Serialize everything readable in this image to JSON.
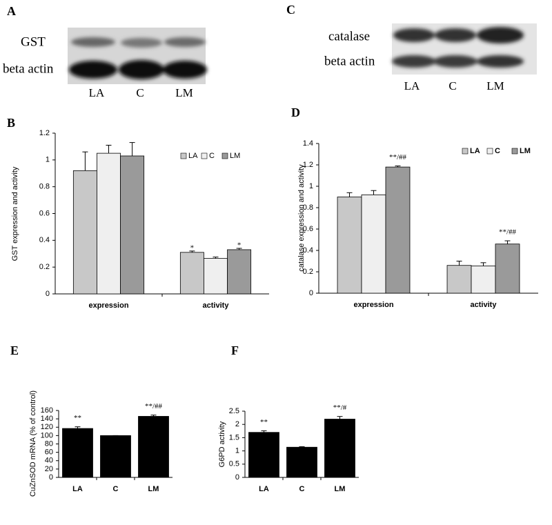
{
  "blots": [
    {
      "panel": "A",
      "rows": [
        "GST",
        "beta actin"
      ],
      "lanes": [
        "LA",
        "C",
        "LM"
      ]
    },
    {
      "panel": "C",
      "rows": [
        "catalase",
        "beta actin"
      ],
      "lanes": [
        "LA",
        "C",
        "LM"
      ]
    }
  ],
  "chart_data": [
    {
      "type": "bar",
      "panel": "B",
      "ylabel": "GST expression and activity",
      "categories": [
        "expression",
        "activity"
      ],
      "series": [
        {
          "name": "LA",
          "color": "#c8c8c8",
          "values": [
            0.92,
            0.31
          ],
          "errors": [
            0.14,
            0.01
          ]
        },
        {
          "name": "C",
          "color": "#efefef",
          "values": [
            1.05,
            0.265
          ],
          "errors": [
            0.06,
            0.01
          ]
        },
        {
          "name": "LM",
          "color": "#9a9a9a",
          "values": [
            1.03,
            0.33
          ],
          "errors": [
            0.1,
            0.01
          ]
        }
      ],
      "ylim": [
        0,
        1.2
      ],
      "yticks": [
        0,
        0.2,
        0.4,
        0.6,
        0.8,
        1,
        1.2
      ],
      "annotations": [
        "*",
        "*"
      ],
      "legend": "top-right"
    },
    {
      "type": "bar",
      "panel": "D",
      "ylabel": "catalase expression and activity",
      "categories": [
        "expression",
        "activity"
      ],
      "series": [
        {
          "name": "LA",
          "color": "#c8c8c8",
          "values": [
            0.9,
            0.26
          ],
          "errors": [
            0.04,
            0.04
          ]
        },
        {
          "name": "C",
          "color": "#efefef",
          "values": [
            0.92,
            0.255
          ],
          "errors": [
            0.04,
            0.03
          ]
        },
        {
          "name": "LM",
          "color": "#9a9a9a",
          "values": [
            1.18,
            0.46
          ],
          "errors": [
            0.01,
            0.03
          ]
        }
      ],
      "ylim": [
        0,
        1.4
      ],
      "yticks": [
        0,
        0.2,
        0.4,
        0.6,
        0.8,
        1,
        1.2,
        1.4
      ],
      "annotations": [
        "**/##",
        "**/##"
      ],
      "legend": "top-right"
    },
    {
      "type": "bar",
      "panel": "E",
      "ylabel": "CuZnSOD mRNA (% of control)",
      "categories": [
        "LA",
        "C",
        "LM"
      ],
      "values": [
        117,
        100,
        146
      ],
      "errors": [
        4,
        0,
        3
      ],
      "color": "#000000",
      "ylim": [
        0,
        160
      ],
      "yticks": [
        0,
        20,
        40,
        60,
        80,
        100,
        120,
        140,
        160
      ],
      "annotations": [
        "**",
        "**/##"
      ]
    },
    {
      "type": "bar",
      "panel": "F",
      "ylabel": "G6PD activity",
      "categories": [
        "LA",
        "C",
        "LM"
      ],
      "values": [
        1.7,
        1.14,
        2.2
      ],
      "errors": [
        0.06,
        0.02,
        0.1
      ],
      "color": "#000000",
      "ylim": [
        0,
        2.5
      ],
      "yticks": [
        0,
        0.5,
        1,
        1.5,
        2,
        2.5
      ],
      "annotations": [
        "**",
        "**/#"
      ]
    }
  ]
}
